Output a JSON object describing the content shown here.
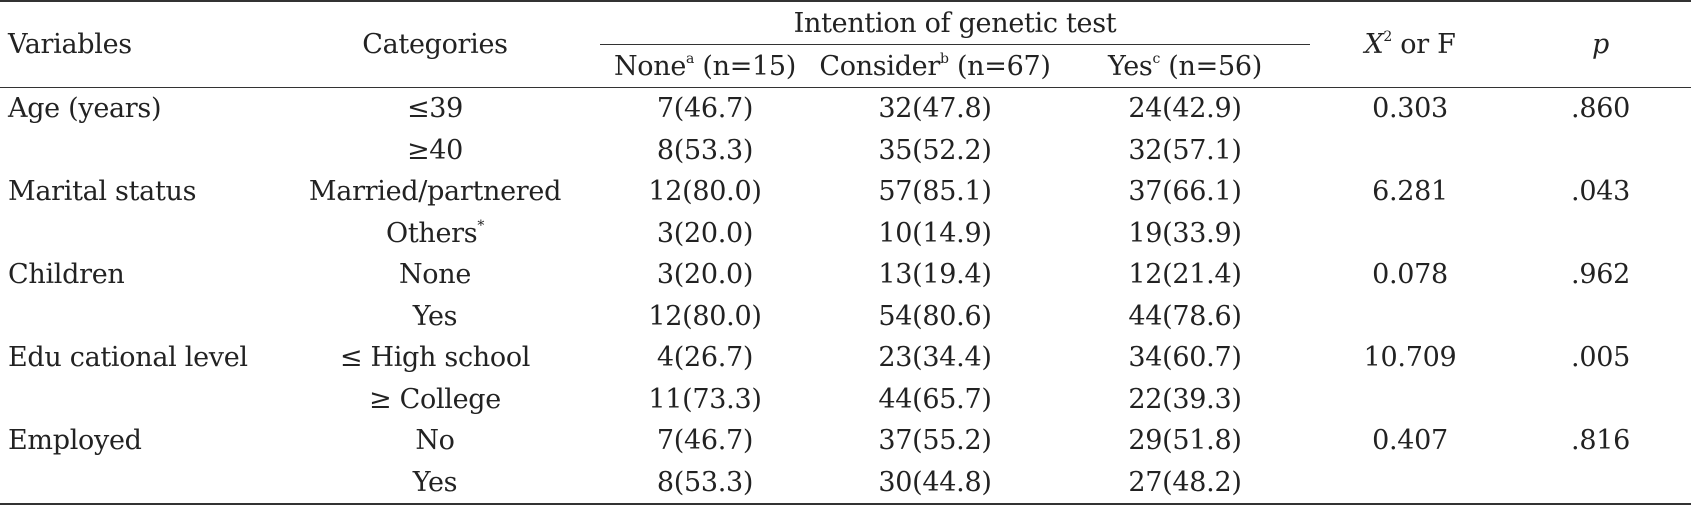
{
  "header": {
    "variables": "Variables",
    "categories": "Categories",
    "group": "Intention of genetic test",
    "none_label": "None",
    "none_sup": "a",
    "none_n": " (n=15)",
    "consider_label": "Consider",
    "consider_sup": "b",
    "consider_n": " (n=67)",
    "yes_label": "Yes",
    "yes_sup": "c",
    "yes_n": " (n=56)",
    "stat_x": "X",
    "stat_sup": "2",
    "stat_rest": " or F",
    "p": "p"
  },
  "rows": [
    {
      "variable": "Age (years)",
      "category": "≤39",
      "none": "7(46.7)",
      "consider": "32(47.8)",
      "yes": "24(42.9)",
      "stat": "0.303",
      "p": ".860"
    },
    {
      "variable": "",
      "category": "≥40",
      "none": "8(53.3)",
      "consider": "35(52.2)",
      "yes": "32(57.1)",
      "stat": "",
      "p": ""
    },
    {
      "variable": "Marital status",
      "category": "Married/partnered",
      "none": "12(80.0)",
      "consider": "57(85.1)",
      "yes": "37(66.1)",
      "stat": "6.281",
      "p": ".043"
    },
    {
      "variable": "",
      "category": "Others",
      "category_sup": "*",
      "none": "3(20.0)",
      "consider": "10(14.9)",
      "yes": "19(33.9)",
      "stat": "",
      "p": ""
    },
    {
      "variable": "Children",
      "category": "None",
      "none": "3(20.0)",
      "consider": "13(19.4)",
      "yes": "12(21.4)",
      "stat": "0.078",
      "p": ".962"
    },
    {
      "variable": "",
      "category": "Yes",
      "none": "12(80.0)",
      "consider": "54(80.6)",
      "yes": "44(78.6)",
      "stat": "",
      "p": ""
    },
    {
      "variable": "Edu cational level",
      "category": "≤ High school",
      "none": "4(26.7)",
      "consider": "23(34.4)",
      "yes": "34(60.7)",
      "stat": "10.709",
      "p": ".005"
    },
    {
      "variable": "",
      "category": "≥ College",
      "none": "11(73.3)",
      "consider": "44(65.7)",
      "yes": "22(39.3)",
      "stat": "",
      "p": ""
    },
    {
      "variable": "Employed",
      "category": "No",
      "none": "7(46.7)",
      "consider": "37(55.2)",
      "yes": "29(51.8)",
      "stat": "0.407",
      "p": ".816"
    },
    {
      "variable": "",
      "category": "Yes",
      "none": "8(53.3)",
      "consider": "30(44.8)",
      "yes": "27(48.2)",
      "stat": "",
      "p": ""
    }
  ]
}
